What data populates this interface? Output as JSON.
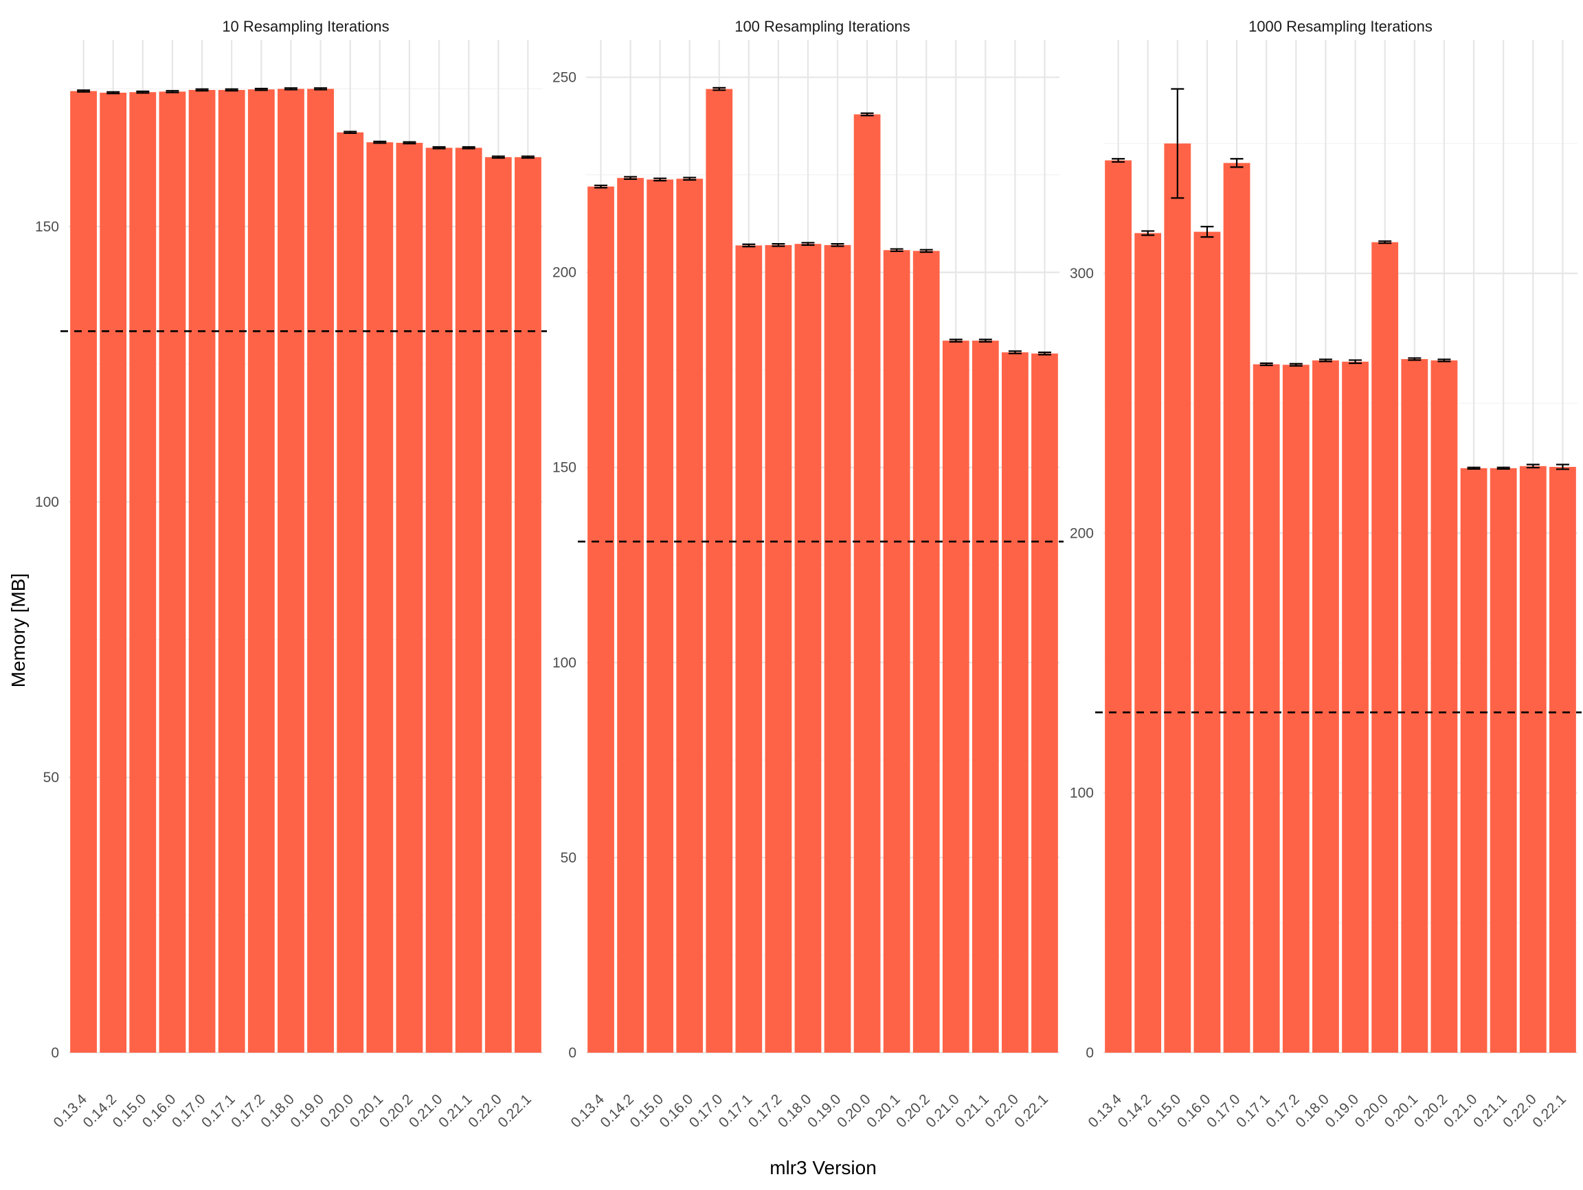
{
  "colors": {
    "bar": "#ff6347",
    "grid_major": "#e6e6e6",
    "grid_minor": "#f2f2f2",
    "errorbar": "#000000",
    "reference_line": "#000000"
  },
  "axis_titles": {
    "x": "mlr3 Version",
    "y": "Memory [MB]"
  },
  "chart_data": [
    {
      "type": "bar",
      "title": "10 Resampling Iterations",
      "categories": [
        "0.13.4",
        "0.14.2",
        "0.15.0",
        "0.16.0",
        "0.17.0",
        "0.17.1",
        "0.17.2",
        "0.18.0",
        "0.19.0",
        "0.20.0",
        "0.20.1",
        "0.20.2",
        "0.21.0",
        "0.21.1",
        "0.22.0",
        "0.22.1"
      ],
      "values": [
        174.6,
        174.3,
        174.4,
        174.5,
        174.8,
        174.8,
        174.9,
        175.0,
        175.0,
        167.1,
        165.3,
        165.2,
        164.3,
        164.3,
        162.6,
        162.6
      ],
      "error": [
        0.15,
        0.15,
        0.15,
        0.15,
        0.15,
        0.15,
        0.15,
        0.15,
        0.15,
        0.15,
        0.15,
        0.15,
        0.15,
        0.15,
        0.15,
        0.15
      ],
      "reference_line": 131,
      "yticks": [
        0,
        50,
        100,
        150
      ],
      "ylim": [
        0,
        183.9
      ],
      "xlabel": "mlr3 Version",
      "ylabel": "Memory [MB]",
      "grid": true
    },
    {
      "type": "bar",
      "title": "100 Resampling Iterations",
      "categories": [
        "0.13.4",
        "0.14.2",
        "0.15.0",
        "0.16.0",
        "0.17.0",
        "0.17.1",
        "0.17.2",
        "0.18.0",
        "0.19.0",
        "0.20.0",
        "0.20.1",
        "0.20.2",
        "0.21.0",
        "0.21.1",
        "0.22.0",
        "0.22.1"
      ],
      "values": [
        222.0,
        224.2,
        223.8,
        224.0,
        247.0,
        206.9,
        207.0,
        207.3,
        207.0,
        240.5,
        205.7,
        205.5,
        182.5,
        182.5,
        179.5,
        179.2
      ],
      "error": [
        0.3,
        0.3,
        0.3,
        0.3,
        0.3,
        0.3,
        0.3,
        0.3,
        0.3,
        0.3,
        0.3,
        0.3,
        0.3,
        0.3,
        0.3,
        0.3
      ],
      "reference_line": 131,
      "yticks": [
        0,
        50,
        100,
        150,
        200,
        250
      ],
      "ylim": [
        0,
        259.6
      ],
      "xlabel": "mlr3 Version",
      "ylabel": "Memory [MB]",
      "grid": true
    },
    {
      "type": "bar",
      "title": "1000 Resampling Iterations",
      "categories": [
        "0.13.4",
        "0.14.2",
        "0.15.0",
        "0.16.0",
        "0.17.0",
        "0.17.1",
        "0.17.2",
        "0.18.0",
        "0.19.0",
        "0.20.0",
        "0.20.1",
        "0.20.2",
        "0.21.0",
        "0.21.1",
        "0.22.0",
        "0.22.1"
      ],
      "values": [
        343.5,
        315.5,
        350.0,
        316.0,
        342.5,
        265.0,
        264.8,
        266.5,
        266.0,
        312.0,
        267.0,
        266.5,
        225.0,
        225.0,
        225.8,
        225.5
      ],
      "error": [
        0.6,
        0.8,
        21.0,
        2.0,
        1.6,
        0.4,
        0.4,
        0.4,
        0.6,
        0.4,
        0.4,
        0.4,
        0.3,
        0.3,
        0.6,
        0.9
      ],
      "reference_line": 131,
      "yticks": [
        0,
        100,
        200,
        300
      ],
      "ylim": [
        0,
        389.9
      ],
      "xlabel": "mlr3 Version",
      "ylabel": "Memory [MB]",
      "grid": true
    }
  ]
}
